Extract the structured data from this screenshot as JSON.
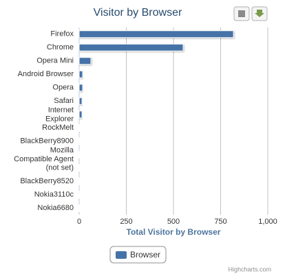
{
  "chart_data": {
    "type": "bar",
    "orientation": "horizontal",
    "title": "Visitor by Browser",
    "categories": [
      "Firefox",
      "Chrome",
      "Opera Mini",
      "Android Browser",
      "Opera",
      "Safari",
      "Internet Explorer",
      "RockMelt",
      "BlackBerry8900",
      "Mozilla Compatible Agent",
      "(not set)",
      "BlackBerry8520",
      "Nokia3110c",
      "Nokia6680"
    ],
    "series": [
      {
        "name": "Browser",
        "color": "#4572a7",
        "values": [
          818,
          551,
          62,
          18,
          18,
          15,
          15,
          1,
          1,
          1,
          1,
          1,
          1,
          1
        ]
      }
    ],
    "xlabel": "Total Visitor by Browser",
    "xlim": [
      0,
      1000
    ],
    "xticks": [
      0,
      250,
      500,
      750,
      {
        "value": 1000,
        "label": "1,000"
      }
    ],
    "grid": true,
    "legend": "bottom",
    "credit": "Highcharts.com"
  }
}
